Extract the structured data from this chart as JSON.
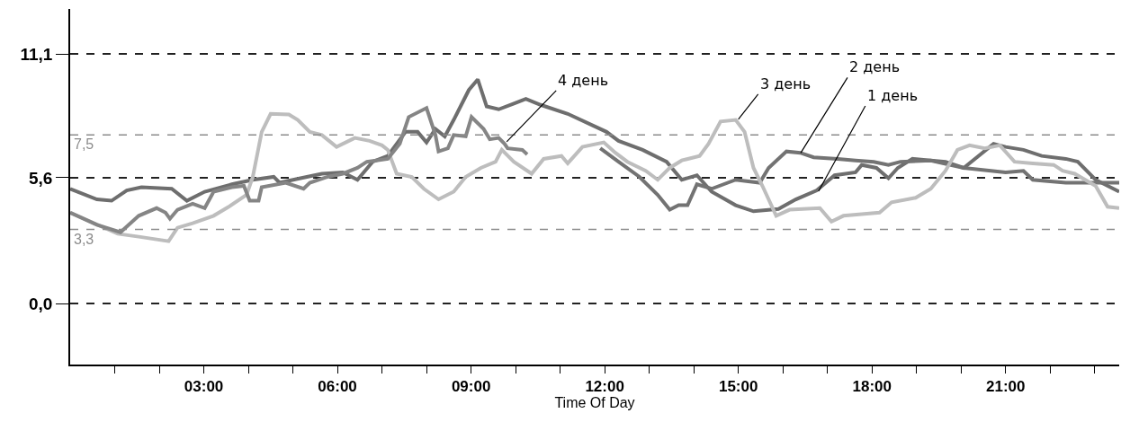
{
  "chart_data": {
    "type": "line",
    "xlabel": "Time Of Day",
    "xlim": [
      0,
      23.55
    ],
    "ylim": [
      -2.7,
      13.1
    ],
    "xticks": [
      {
        "value": 1,
        "label": null
      },
      {
        "value": 2,
        "label": null
      },
      {
        "value": 3,
        "label": "03:00"
      },
      {
        "value": 4,
        "label": null
      },
      {
        "value": 5,
        "label": null
      },
      {
        "value": 6,
        "label": "06:00"
      },
      {
        "value": 7,
        "label": null
      },
      {
        "value": 8,
        "label": null
      },
      {
        "value": 9,
        "label": "09:00"
      },
      {
        "value": 10,
        "label": null
      },
      {
        "value": 11,
        "label": null
      },
      {
        "value": 12,
        "label": "12:00"
      },
      {
        "value": 13,
        "label": null
      },
      {
        "value": 14,
        "label": null
      },
      {
        "value": 15,
        "label": "15:00"
      },
      {
        "value": 16,
        "label": null
      },
      {
        "value": 17,
        "label": null
      },
      {
        "value": 18,
        "label": "18:00"
      },
      {
        "value": 19,
        "label": null
      },
      {
        "value": 20,
        "label": null
      },
      {
        "value": 21,
        "label": "21:00"
      },
      {
        "value": 22,
        "label": null
      },
      {
        "value": 23,
        "label": null
      }
    ],
    "yticks": [
      {
        "value": 0,
        "label": "0,0"
      },
      {
        "value": 5.6,
        "label": "5,6"
      },
      {
        "value": 11.1,
        "label": "11,1"
      }
    ],
    "grid": "y",
    "ref_lines": [
      {
        "axis": "y",
        "value": 7.5,
        "label": "7,5",
        "color": "#8c8c8c",
        "line_style": "dashed"
      },
      {
        "axis": "y",
        "value": 3.3,
        "label": "3,3",
        "color": "#8c8c8c",
        "line_style": "dashed"
      }
    ],
    "annotations": [
      {
        "text": "4 день",
        "x": 9.8,
        "y": 7.2
      },
      {
        "text": "3 день",
        "x": 15.0,
        "y": 8.2
      },
      {
        "text": "2 день",
        "x": 16.4,
        "y": 6.7
      },
      {
        "text": "1 день",
        "x": 16.8,
        "y": 5.0
      }
    ],
    "series": [
      {
        "color": "#6e6e6e",
        "x": [
          0,
          0.6,
          0.93,
          1.27,
          1.6,
          2.28,
          2.62,
          3.02,
          3.63,
          4.1,
          4.57,
          4.7,
          5.17,
          5.65,
          6.12,
          6.45,
          6.79,
          7.13,
          7.53,
          7.8,
          8.0,
          8.2,
          8.41,
          8.61,
          8.95,
          9.15,
          9.35,
          9.62,
          9.96,
          10.23,
          10.56,
          11.17,
          12.04,
          12.31,
          12.85,
          13.39,
          13.73,
          14.07,
          14.4,
          14.94,
          15.34,
          15.9,
          16.29,
          16.76,
          17.16,
          17.63,
          17.77,
          18.1,
          18.37,
          18.58,
          18.91,
          19.32,
          19.65,
          20.06,
          20.73,
          21.0,
          21.4,
          21.81,
          22.35,
          22.62,
          23.02,
          23.55
        ],
        "values": [
          5.11,
          4.64,
          4.58,
          5.04,
          5.18,
          5.11,
          4.58,
          4.98,
          5.31,
          5.51,
          5.64,
          5.38,
          5.58,
          5.78,
          5.84,
          5.51,
          6.31,
          6.57,
          7.64,
          7.64,
          7.17,
          7.77,
          7.44,
          8.17,
          9.5,
          9.97,
          8.77,
          8.64,
          8.9,
          9.1,
          8.84,
          8.44,
          7.64,
          7.24,
          6.84,
          6.31,
          5.51,
          5.71,
          4.98,
          4.38,
          4.11,
          4.21,
          4.64,
          5.04,
          5.71,
          5.84,
          6.17,
          6.04,
          5.58,
          6.04,
          6.44,
          6.37,
          6.31,
          6.04,
          7.11,
          6.97,
          6.84,
          6.57,
          6.44,
          6.31,
          5.51,
          4.98
        ]
      },
      {
        "color": "#737373",
        "x": [
          11.9,
          12.31,
          12.78,
          13.19,
          13.46,
          13.66,
          13.86,
          14.07,
          14.4,
          14.94,
          15.48,
          15.68,
          16.08,
          16.39,
          16.69,
          17.23,
          17.63,
          18.04,
          18.37,
          18.64,
          19.32,
          20.06,
          21.0,
          21.4,
          21.61,
          22.35,
          23.55
        ],
        "values": [
          6.91,
          6.31,
          5.64,
          4.84,
          4.18,
          4.38,
          4.38,
          5.31,
          5.11,
          5.51,
          5.38,
          6.04,
          6.77,
          6.71,
          6.51,
          6.44,
          6.37,
          6.31,
          6.17,
          6.31,
          6.37,
          6.04,
          5.84,
          5.91,
          5.51,
          5.38,
          5.38
        ]
      },
      {
        "color": "#bdbdbd",
        "x": [
          0,
          1.07,
          1.54,
          2.21,
          2.41,
          2.75,
          3.22,
          3.56,
          3.96,
          4.1,
          4.3,
          4.5,
          4.91,
          5.11,
          5.38,
          5.65,
          5.98,
          6.39,
          6.72,
          7.0,
          7.13,
          7.33,
          7.67,
          7.94,
          8.27,
          8.61,
          8.88,
          9.22,
          9.55,
          9.69,
          9.96,
          10.36,
          10.63,
          11.03,
          11.17,
          11.5,
          11.98,
          12.24,
          12.51,
          12.92,
          13.19,
          13.46,
          13.73,
          14.13,
          14.33,
          14.6,
          14.94,
          15.14,
          15.34,
          15.54,
          15.85,
          16.15,
          16.83,
          17.09,
          17.36,
          17.77,
          18.17,
          18.44,
          18.98,
          19.32,
          19.65,
          19.92,
          20.19,
          20.53,
          20.87,
          21.2,
          21.61,
          22.08,
          22.28,
          22.55,
          23.02,
          23.29,
          23.55
        ],
        "values": [
          4.05,
          3.11,
          2.98,
          2.78,
          3.38,
          3.58,
          3.91,
          4.31,
          4.84,
          5.64,
          7.64,
          8.44,
          8.41,
          8.17,
          7.64,
          7.5,
          6.97,
          7.37,
          7.24,
          7.04,
          6.84,
          5.78,
          5.64,
          5.11,
          4.64,
          4.98,
          5.64,
          6.04,
          6.31,
          6.84,
          6.31,
          5.78,
          6.44,
          6.57,
          6.24,
          6.97,
          7.17,
          6.71,
          6.31,
          5.91,
          5.51,
          6.04,
          6.37,
          6.57,
          7.11,
          8.1,
          8.17,
          7.64,
          6.04,
          5.24,
          3.91,
          4.18,
          4.25,
          3.65,
          3.91,
          3.98,
          4.05,
          4.51,
          4.71,
          5.11,
          5.91,
          6.84,
          7.04,
          6.91,
          7.04,
          6.31,
          6.24,
          6.17,
          5.91,
          5.78,
          5.24,
          4.31,
          4.25
        ]
      },
      {
        "color": "#858585",
        "x": [
          0,
          0.6,
          1.13,
          1.54,
          1.94,
          2.14,
          2.24,
          2.41,
          2.75,
          3.02,
          3.22,
          3.63,
          3.9,
          4.03,
          4.23,
          4.3,
          4.84,
          5.24,
          5.38,
          5.78,
          6.12,
          6.45,
          6.66,
          7.13,
          7.4,
          7.6,
          8.0,
          8.2,
          8.27,
          8.48,
          8.61,
          8.88,
          9.01,
          9.28,
          9.42,
          9.62,
          9.75,
          9.82,
          10.15,
          10.26
        ],
        "values": [
          4.05,
          3.51,
          3.18,
          3.91,
          4.25,
          4.05,
          3.78,
          4.18,
          4.45,
          4.25,
          4.98,
          5.18,
          5.24,
          4.58,
          4.58,
          5.18,
          5.38,
          5.11,
          5.38,
          5.64,
          5.78,
          6.04,
          6.31,
          6.44,
          7.11,
          8.3,
          8.7,
          7.5,
          6.77,
          6.91,
          7.5,
          7.44,
          8.3,
          7.77,
          7.31,
          7.37,
          7.11,
          6.91,
          6.84,
          6.64
        ]
      }
    ]
  }
}
